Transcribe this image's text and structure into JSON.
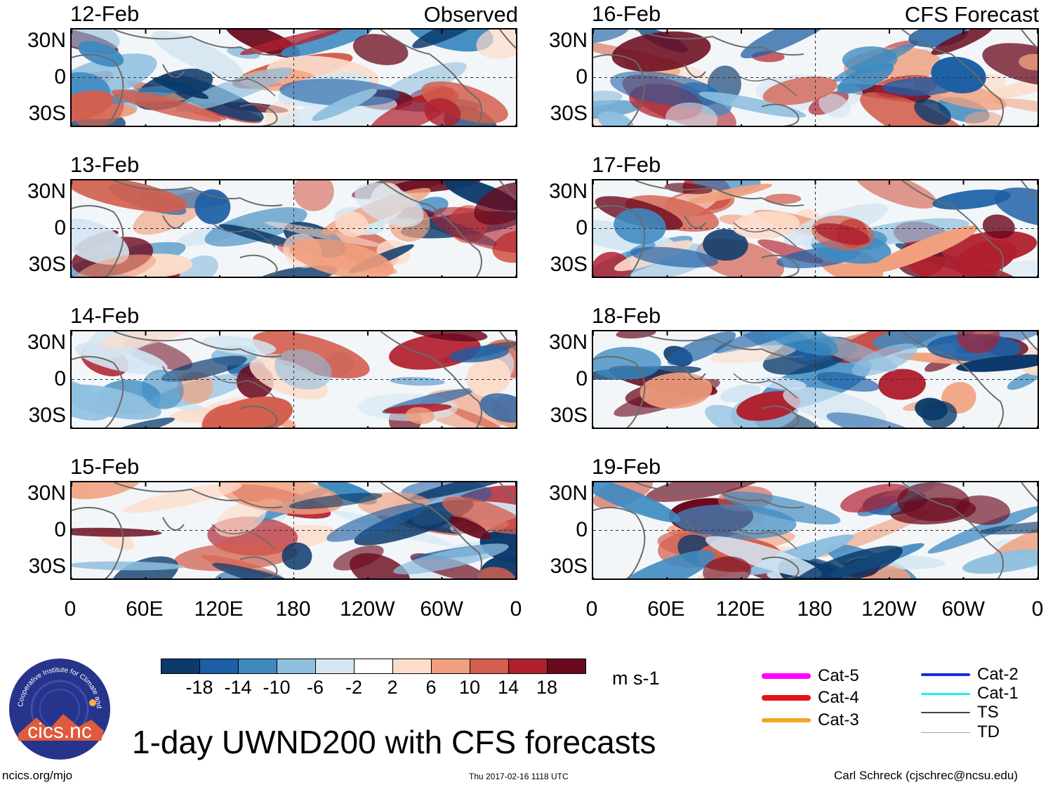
{
  "columns": [
    {
      "title": "Observed",
      "dates": [
        "12-Feb",
        "13-Feb",
        "14-Feb",
        "15-Feb"
      ]
    },
    {
      "title": "CFS Forecast",
      "dates": [
        "16-Feb",
        "17-Feb",
        "18-Feb",
        "19-Feb"
      ]
    }
  ],
  "lat_labels": [
    "30N",
    "0",
    "30S"
  ],
  "lon_labels": [
    "0",
    "60E",
    "120E",
    "180",
    "120W",
    "60W",
    "0"
  ],
  "colorbar": {
    "labels": [
      "-18",
      "-14",
      "-10",
      "-6",
      "-2",
      "2",
      "6",
      "10",
      "14",
      "18"
    ],
    "colors": [
      "#0b3a6b",
      "#1c5fa5",
      "#3e8ac1",
      "#8fbfdf",
      "#d3e6f2",
      "#ffffff",
      "#fcdcca",
      "#f1a07e",
      "#d35f4e",
      "#b0202f",
      "#6b0a1e"
    ],
    "units": "m s-1"
  },
  "title": "1-day UWND200 with CFS forecasts",
  "logo": {
    "text": "cics.nc",
    "arc_text": "Cooperative Institute for Climate and Satellites"
  },
  "footer": {
    "left": "ncics.org/mjo",
    "center": "Thu 2017-02-16 1118 UTC",
    "right": "Carl Schreck (cjschrec@ncsu.edu)"
  },
  "legend": [
    {
      "label": "Cat-5",
      "color": "#ff00ff"
    },
    {
      "label": "Cat-4",
      "color": "#e3141c"
    },
    {
      "label": "Cat-3",
      "color": "#f5a623"
    },
    {
      "label": "Cat-2",
      "color": "#1630d9"
    },
    {
      "label": "Cat-1",
      "color": "#1ef0f0"
    },
    {
      "label": "TS",
      "color": "#444444"
    },
    {
      "label": "TD",
      "color": "#a0a0a0"
    }
  ]
}
